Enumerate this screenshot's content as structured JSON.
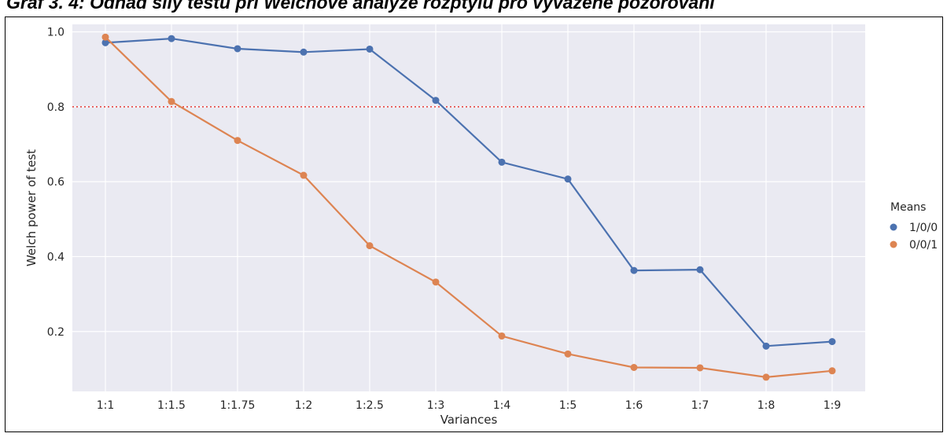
{
  "caption": "Graf 3. 4: Odhad síly testu při Welchově analýze rozptylu pro vyvážené pozorování",
  "colors": {
    "plot_bg": "#EAEAF2",
    "grid": "#FFFFFF",
    "series_1": "#4C72B0",
    "series_2": "#DD8452",
    "reference_line": "#E53935"
  },
  "chart_data": {
    "type": "line",
    "xlabel": "Variances",
    "ylabel": "Welch power of test",
    "categories": [
      "1:1",
      "1:1.5",
      "1:1.75",
      "1:2",
      "1:2.5",
      "1:3",
      "1:4",
      "1:5",
      "1:6",
      "1:7",
      "1:8",
      "1:9"
    ],
    "yticks": [
      "0.2",
      "0.4",
      "0.6",
      "0.8",
      "1.0"
    ],
    "ylim": [
      0.04,
      1.02
    ],
    "grid": true,
    "reference_line": {
      "y": 0.8,
      "style": "dotted"
    },
    "legend": {
      "title": "Means",
      "placement": "right"
    },
    "series": [
      {
        "name": "1/0/0",
        "color": "#4C72B0",
        "values": [
          0.971,
          0.982,
          0.955,
          0.946,
          0.954,
          0.817,
          0.652,
          0.607,
          0.363,
          0.365,
          0.161,
          0.173
        ]
      },
      {
        "name": "0/0/1",
        "color": "#DD8452",
        "values": [
          0.986,
          0.814,
          0.71,
          0.617,
          0.429,
          0.332,
          0.188,
          0.14,
          0.104,
          0.103,
          0.078,
          0.095
        ]
      }
    ]
  }
}
